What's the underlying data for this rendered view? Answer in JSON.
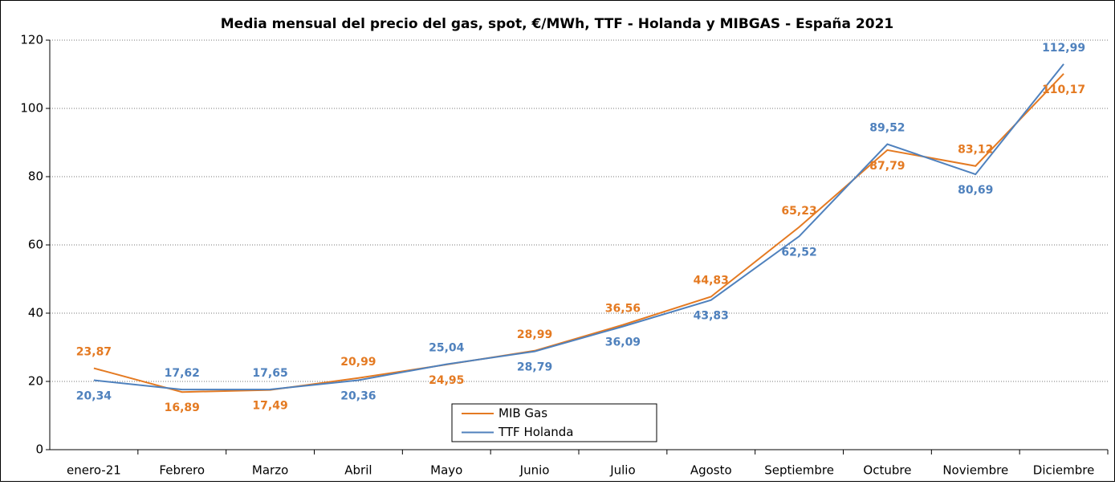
{
  "chart_data": {
    "type": "line",
    "title": "Media mensual del precio del gas, spot, €/MWh, TTF - Holanda y MIBGAS - España 2021",
    "categories": [
      "enero-21",
      "Febrero",
      "Marzo",
      "Abril",
      "Mayo",
      "Junio",
      "Julio",
      "Agosto",
      "Septiembre",
      "Octubre",
      "Noviembre",
      "Diciembre"
    ],
    "series": [
      {
        "name": "MIB Gas",
        "color": "#e47a22",
        "values": [
          23.87,
          16.89,
          17.49,
          20.99,
          24.95,
          28.99,
          36.56,
          44.83,
          65.23,
          87.79,
          83.12,
          110.17
        ],
        "value_labels": [
          "23,87",
          "16,89",
          "17,49",
          "20,99",
          "24,95",
          "28,99",
          "36,56",
          "44,83",
          "65,23",
          "87,79",
          "83,12",
          "110,17"
        ]
      },
      {
        "name": "TTF Holanda",
        "color": "#4f81bd",
        "values": [
          20.34,
          17.62,
          17.65,
          20.36,
          25.04,
          28.79,
          36.09,
          43.83,
          62.52,
          89.52,
          80.69,
          112.99
        ],
        "value_labels": [
          "20,34",
          "17,62",
          "17,65",
          "20,36",
          "25,04",
          "28,79",
          "36,09",
          "43,83",
          "62,52",
          "89,52",
          "80,69",
          "112,99"
        ]
      }
    ],
    "ylim": [
      0,
      120
    ],
    "yticks": [
      0,
      20,
      40,
      60,
      80,
      100,
      120
    ],
    "grid": true,
    "legend": "bottom"
  }
}
